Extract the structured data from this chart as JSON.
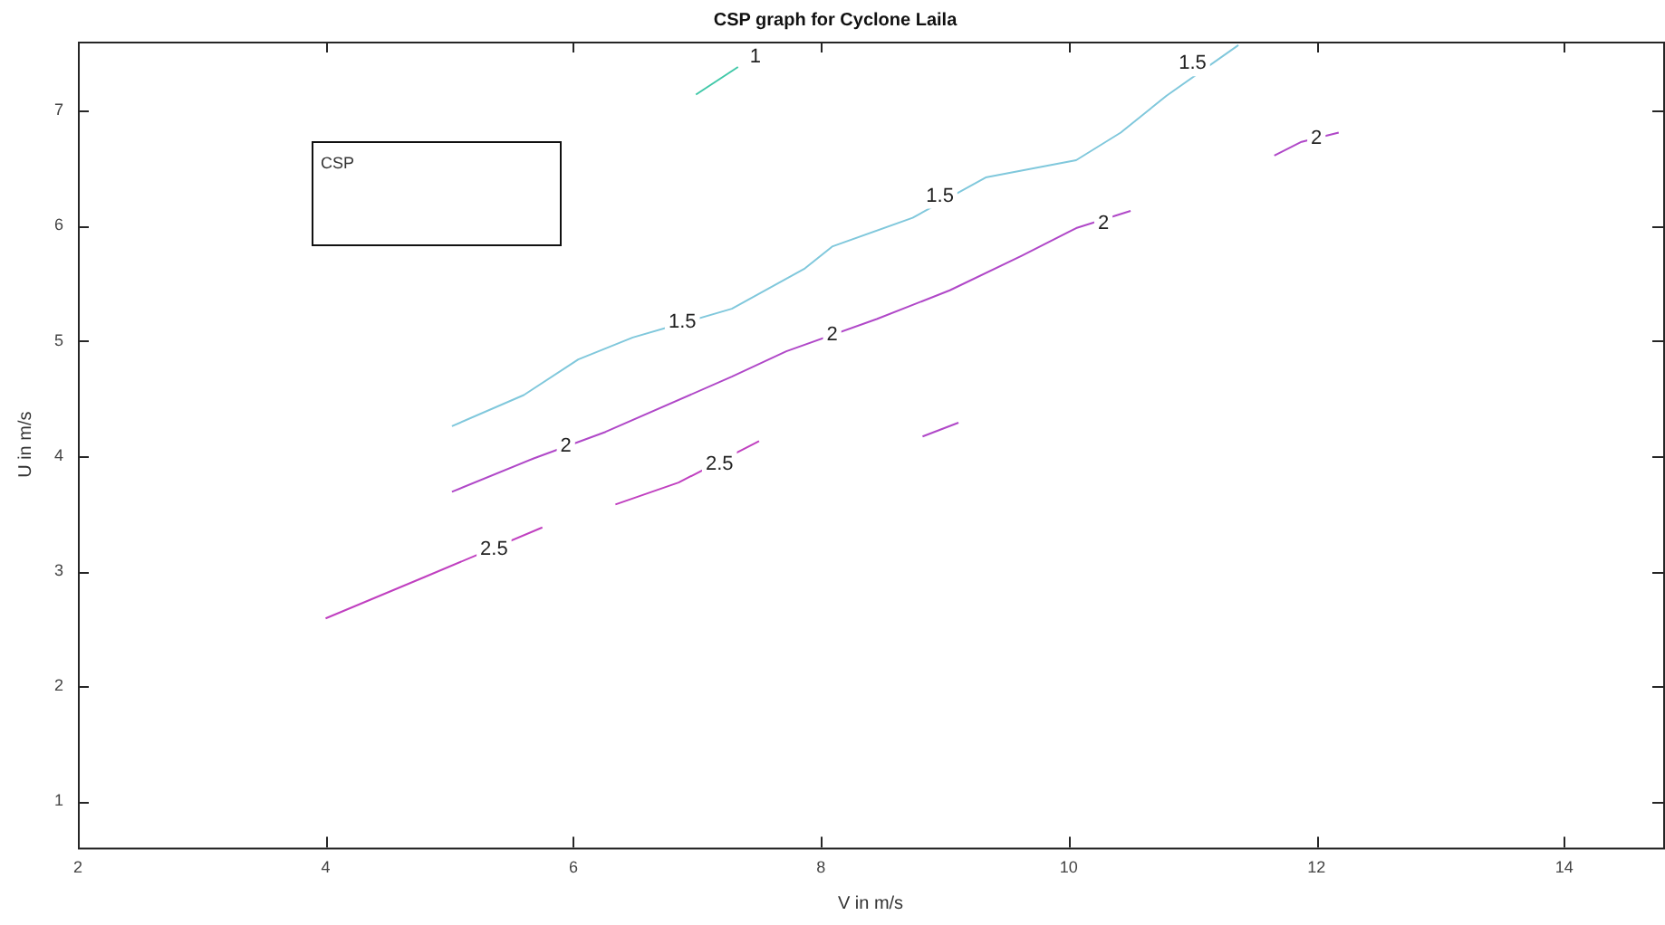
{
  "chart_data": {
    "type": "line",
    "title": "CSP graph for Cyclone Laila",
    "xlabel": "V in m/s",
    "ylabel": "U in m/s",
    "legend_title": "CSP",
    "grid": false,
    "marker": "none",
    "line_style": "solid",
    "xlim": [
      2,
      14.8
    ],
    "ylim": [
      0.6,
      7.6
    ],
    "xticks": [
      2,
      4,
      6,
      8,
      10,
      12,
      14
    ],
    "yticks": [
      1,
      2,
      3,
      4,
      5,
      6,
      7
    ],
    "series": [
      {
        "color": "#40c8a8",
        "x": [
          6.99,
          7.33
        ],
        "values": [
          7.14,
          7.38
        ]
      },
      {
        "color": "#80c8dc",
        "x": [
          5.02,
          5.6,
          6.04,
          6.48,
          7.28,
          7.87,
          8.09,
          8.74,
          9.33,
          10.06,
          10.42,
          10.79,
          11.37
        ],
        "values": [
          4.26,
          4.53,
          4.84,
          5.03,
          5.28,
          5.63,
          5.82,
          6.07,
          6.42,
          6.57,
          6.81,
          7.13,
          7.57
        ]
      },
      {
        "color": "#b048c8",
        "x": [
          5.02,
          5.68,
          6.26,
          7.28,
          7.72,
          8.45,
          9.04,
          9.62,
          10.06,
          10.5
        ],
        "values": [
          3.69,
          3.98,
          4.21,
          4.69,
          4.91,
          5.19,
          5.44,
          5.74,
          5.98,
          6.13
        ]
      },
      {
        "color": "#b048c8",
        "x": [
          11.66,
          11.88,
          12.18
        ],
        "values": [
          6.61,
          6.73,
          6.81
        ]
      },
      {
        "color": "#b048c8",
        "x": [
          8.82,
          9.11
        ],
        "values": [
          4.17,
          4.29
        ]
      },
      {
        "color": "#c040c0",
        "x": [
          4.0,
          4.8,
          5.75
        ],
        "values": [
          2.59,
          2.95,
          3.38
        ]
      },
      {
        "color": "#c040c0",
        "x": [
          6.34,
          6.85,
          7.5
        ],
        "values": [
          3.58,
          3.77,
          4.13
        ]
      }
    ],
    "annotations": [
      {
        "text": "1",
        "x": 7.47,
        "y": 7.47
      },
      {
        "text": "1.5",
        "x": 6.88,
        "y": 5.16
      },
      {
        "text": "1.5",
        "x": 8.96,
        "y": 6.26
      },
      {
        "text": "1.5",
        "x": 11.0,
        "y": 7.41
      },
      {
        "text": "2",
        "x": 5.94,
        "y": 4.09
      },
      {
        "text": "2",
        "x": 8.09,
        "y": 5.05
      },
      {
        "text": "2",
        "x": 10.28,
        "y": 6.02
      },
      {
        "text": "2",
        "x": 12.0,
        "y": 6.76
      },
      {
        "text": "2.5",
        "x": 5.36,
        "y": 3.19
      },
      {
        "text": "2.5",
        "x": 7.18,
        "y": 3.93
      }
    ]
  }
}
